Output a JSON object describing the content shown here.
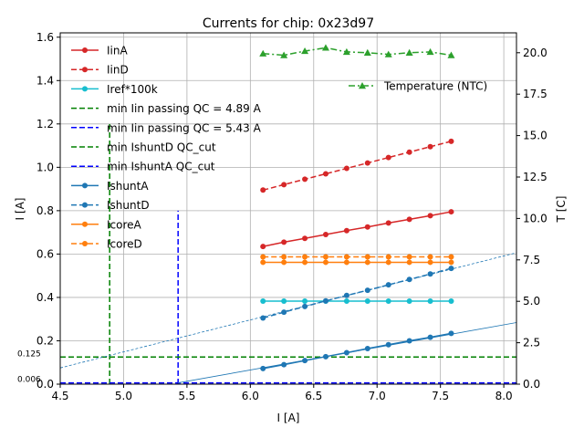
{
  "chart_data": {
    "type": "line",
    "title": "Currents for chip: 0x23d97",
    "xlabel": "I [A]",
    "ylabel": "I [A]",
    "y2label": "T [C]",
    "xlim": [
      4.5,
      8.1
    ],
    "ylim": [
      0.0,
      1.62
    ],
    "y2lim": [
      0.0,
      21.2
    ],
    "grid": true,
    "xticks": [
      4.5,
      5.0,
      5.5,
      6.0,
      6.5,
      7.0,
      7.5,
      8.0
    ],
    "xtick_labels": [
      "4.5",
      "5.0",
      "5.5",
      "6.0",
      "6.5",
      "7.0",
      "7.5",
      "8.0"
    ],
    "yticks": [
      0.0,
      0.2,
      0.4,
      0.6,
      0.8,
      1.0,
      1.2,
      1.4,
      1.6
    ],
    "ytick_labels": [
      "0.0",
      "0.2",
      "0.4",
      "0.6",
      "0.8",
      "1.0",
      "1.2",
      "1.4",
      "1.6"
    ],
    "y2ticks": [
      0.0,
      2.5,
      5.0,
      7.5,
      10.0,
      12.5,
      15.0,
      17.5,
      20.0
    ],
    "y2tick_labels": [
      "0.0",
      "2.5",
      "5.0",
      "7.5",
      "10.0",
      "12.5",
      "15.0",
      "17.5",
      "20.0"
    ],
    "x": [
      6.1,
      6.265,
      6.43,
      6.595,
      6.76,
      6.925,
      7.09,
      7.255,
      7.42,
      7.585
    ],
    "series": [
      {
        "name": "IinA",
        "color": "#d62728",
        "dash": "solid",
        "marker": "circle",
        "axis": "left",
        "values": [
          0.635,
          0.655,
          0.672,
          0.69,
          0.708,
          0.725,
          0.743,
          0.76,
          0.777,
          0.795
        ]
      },
      {
        "name": "IinD",
        "color": "#d62728",
        "dash": "dashed",
        "marker": "circle",
        "axis": "left",
        "values": [
          0.895,
          0.92,
          0.945,
          0.97,
          0.995,
          1.02,
          1.045,
          1.07,
          1.095,
          1.12
        ]
      },
      {
        "name": "Iref*100k",
        "color": "#17becf",
        "dash": "solid",
        "marker": "circle",
        "axis": "left",
        "values": [
          0.383,
          0.383,
          0.383,
          0.383,
          0.383,
          0.383,
          0.383,
          0.383,
          0.383,
          0.383
        ]
      },
      {
        "name": "IshuntA",
        "color": "#1f77b4",
        "dash": "solid",
        "marker": "circle",
        "axis": "left",
        "values": [
          0.072,
          0.09,
          0.109,
          0.127,
          0.145,
          0.164,
          0.182,
          0.2,
          0.216,
          0.234
        ]
      },
      {
        "name": "IshuntD",
        "color": "#1f77b4",
        "dash": "dashed",
        "marker": "circle",
        "axis": "left",
        "values": [
          0.305,
          0.332,
          0.358,
          0.384,
          0.409,
          0.433,
          0.458,
          0.483,
          0.508,
          0.534
        ]
      },
      {
        "name": "IcoreA",
        "color": "#ff7f0e",
        "dash": "solid",
        "marker": "circle",
        "axis": "left",
        "values": [
          0.562,
          0.562,
          0.562,
          0.562,
          0.562,
          0.562,
          0.562,
          0.562,
          0.562,
          0.562
        ]
      },
      {
        "name": "IcoreD",
        "color": "#ff7f0e",
        "dash": "dashed",
        "marker": "circle",
        "axis": "left",
        "values": [
          0.587,
          0.587,
          0.587,
          0.587,
          0.587,
          0.587,
          0.587,
          0.587,
          0.587,
          0.587
        ]
      },
      {
        "name": "Temperature (NTC)",
        "color": "#2ca02c",
        "dash": "dashdot",
        "marker": "triangle",
        "axis": "right",
        "values": [
          19.95,
          19.85,
          20.1,
          20.3,
          20.05,
          20.0,
          19.9,
          20.0,
          20.05,
          19.85
        ]
      }
    ],
    "fit_lines": [
      {
        "name": "IshuntA fit",
        "color": "#1f77b4",
        "x": [
          5.43,
          8.1
        ],
        "values": [
          0.006,
          0.284
        ]
      },
      {
        "name": "IshuntD fit",
        "color": "#1f77b4",
        "x": [
          4.5,
          8.1
        ],
        "values": [
          0.075,
          0.606
        ]
      }
    ],
    "reference_lines": [
      {
        "name": "min Iin passing QC = 4.89 A",
        "orientation": "vertical",
        "value": 4.89,
        "color": "#008000",
        "ymax": 1.2
      },
      {
        "name": "min Iin passing QC = 5.43 A",
        "orientation": "vertical",
        "value": 5.43,
        "color": "#0000ff",
        "ymax": 0.8
      },
      {
        "name": "min IshuntD QC_cut",
        "orientation": "horizontal",
        "value": 0.125,
        "color": "#008000"
      },
      {
        "name": "min IshuntA QC_cut",
        "orientation": "horizontal",
        "value": 0.006,
        "color": "#0000ff"
      }
    ],
    "annotations": [
      {
        "text": "0.125",
        "x": 4.5,
        "y": 0.125
      },
      {
        "text": "0.006",
        "x": 4.5,
        "y": 0.006
      }
    ],
    "legend_main": {
      "placement": "top-left",
      "entries": [
        {
          "label": "IinA",
          "color": "#d62728",
          "dash": "solid",
          "marker": "circle"
        },
        {
          "label": "IinD",
          "color": "#d62728",
          "dash": "dashed",
          "marker": "circle"
        },
        {
          "label": "Iref*100k",
          "color": "#17becf",
          "dash": "solid",
          "marker": "circle"
        },
        {
          "label": "min Iin passing QC = 4.89 A",
          "color": "#008000",
          "dash": "dashed",
          "marker": "none"
        },
        {
          "label": "min Iin passing QC = 5.43 A",
          "color": "#0000ff",
          "dash": "dashed",
          "marker": "none"
        },
        {
          "label": "min IshuntD QC_cut",
          "color": "#008000",
          "dash": "dashed",
          "marker": "none"
        },
        {
          "label": "min IshuntA QC_cut",
          "color": "#0000ff",
          "dash": "dashed",
          "marker": "none"
        },
        {
          "label": "IshuntA",
          "color": "#1f77b4",
          "dash": "solid",
          "marker": "circle"
        },
        {
          "label": "IshuntD",
          "color": "#1f77b4",
          "dash": "dashed",
          "marker": "circle"
        },
        {
          "label": "IcoreA",
          "color": "#ff7f0e",
          "dash": "solid",
          "marker": "circle"
        },
        {
          "label": "IcoreD",
          "color": "#ff7f0e",
          "dash": "dashed",
          "marker": "circle"
        }
      ]
    },
    "legend_temp": {
      "placement": "upper-right",
      "entries": [
        {
          "label": "Temperature (NTC)",
          "color": "#2ca02c",
          "dash": "dashdot",
          "marker": "triangle"
        }
      ]
    }
  }
}
